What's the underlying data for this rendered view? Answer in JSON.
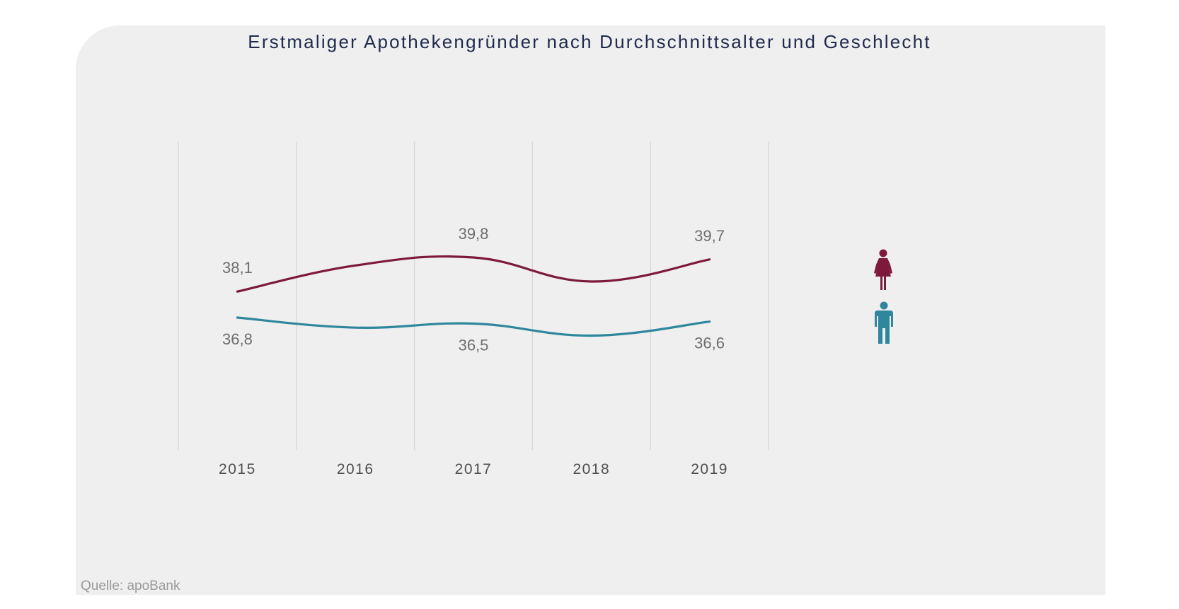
{
  "chart_data": {
    "type": "line",
    "title": "Erstmaliger Apothekengründer nach Durchschnittsalter und Geschlecht",
    "xlabel": "",
    "ylabel": "",
    "categories": [
      "2015",
      "2016",
      "2017",
      "2018",
      "2019"
    ],
    "ylim": [
      35,
      41
    ],
    "grid": "vertical",
    "legend": "right (icons)",
    "series": [
      {
        "name": "Frauen",
        "icon": "female-icon",
        "color": "#7d1a3c",
        "values": [
          38.1,
          39.4,
          39.8,
          38.6,
          39.7
        ],
        "labels": [
          "38,1",
          null,
          "39,8",
          null,
          "39,7"
        ]
      },
      {
        "name": "Männer",
        "icon": "male-icon",
        "color": "#2f879e",
        "values": [
          36.8,
          36.3,
          36.5,
          35.9,
          36.6
        ],
        "labels": [
          "36,8",
          null,
          "36,5",
          null,
          "36,6"
        ]
      }
    ]
  },
  "source": "Quelle: apoBank",
  "colors": {
    "background": "#efefef",
    "title": "#1f2a4d",
    "gridline": "#d6d6d6"
  }
}
